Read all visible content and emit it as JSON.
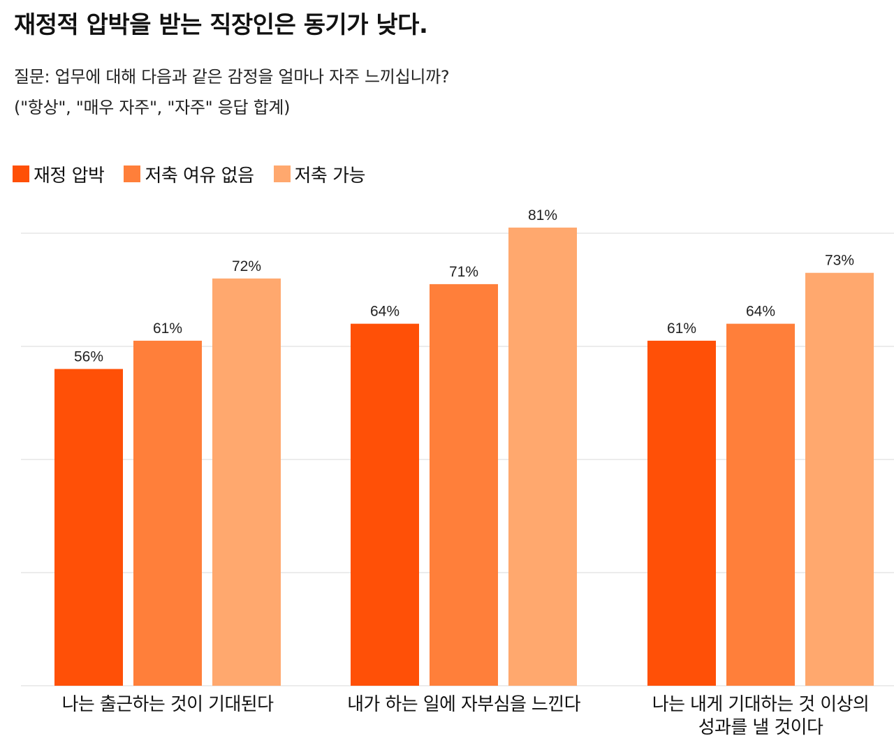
{
  "title": "재정적 압박을 받는 직장인은 동기가 낮다.",
  "subtitle": {
    "line1": "질문: 업무에 대해 다음과 같은 감정을 얼마나 자주 느끼십니까?",
    "line2": "(\"항상\", \"매우 자주\", \"자주\" 응답 합계)"
  },
  "colors": {
    "series1": "#FF5007",
    "series2": "#FF7F3A",
    "series3": "#FFA86E",
    "grid": "#E6E6E6"
  },
  "chart_data": {
    "type": "bar",
    "title": "재정적 압박을 받는 직장인은 동기가 낮다.",
    "xlabel": "",
    "ylabel": "",
    "ylim": [
      0,
      100
    ],
    "grid": true,
    "legend_position": "top-left",
    "categories": [
      [
        "나는 출근하는 것이 기대된다"
      ],
      [
        "내가 하는 일에 자부심을 느낀다"
      ],
      [
        "나는 내게 기대하는 것 이상의",
        "성과를 낼 것이다"
      ]
    ],
    "series": [
      {
        "name": "재정 압박",
        "values": [
          56,
          64,
          61
        ],
        "labels": [
          "56%",
          "64%",
          "61%"
        ]
      },
      {
        "name": "저축 여유 없음",
        "values": [
          61,
          71,
          64
        ],
        "labels": [
          "61%",
          "71%",
          "64%"
        ]
      },
      {
        "name": "저축 가능",
        "values": [
          72,
          81,
          73
        ],
        "labels": [
          "72%",
          "81%",
          "73%"
        ]
      }
    ]
  }
}
